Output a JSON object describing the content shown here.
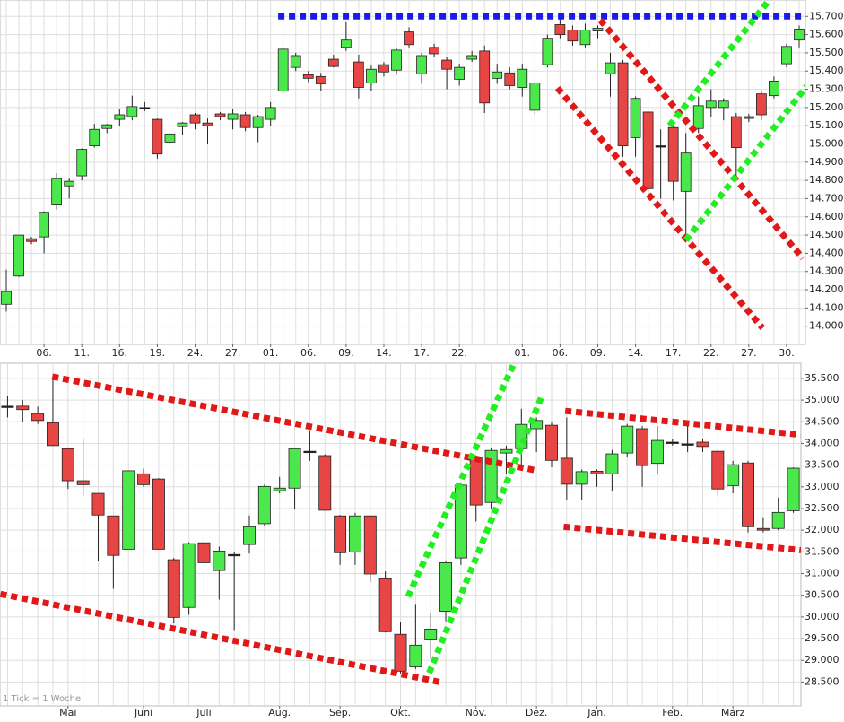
{
  "chart_data": [
    {
      "type": "candlestick",
      "categories": [
        null,
        null,
        null,
        "06.",
        null,
        null,
        "11.",
        null,
        null,
        "16.",
        null,
        null,
        "19.",
        null,
        null,
        "24.",
        null,
        null,
        "27.",
        null,
        null,
        "01.",
        null,
        null,
        "06.",
        null,
        null,
        "09.",
        null,
        null,
        "14.",
        null,
        null,
        "17.",
        null,
        null,
        "22.",
        null,
        null,
        null,
        null,
        "01.",
        null,
        null,
        "06.",
        null,
        null,
        "09.",
        null,
        null,
        "14.",
        null,
        null,
        "17.",
        null,
        null,
        "22.",
        null,
        null,
        "27.",
        null,
        null,
        "30.",
        null
      ],
      "open": [
        14120,
        14275,
        14480,
        14490,
        14665,
        14770,
        14825,
        14990,
        15085,
        15135,
        15150,
        15200,
        15135,
        15010,
        15095,
        15160,
        15115,
        15165,
        15135,
        15160,
        15090,
        15135,
        15290,
        15420,
        15380,
        15370,
        15465,
        15530,
        15450,
        15335,
        15435,
        15405,
        15615,
        15385,
        15530,
        15460,
        15355,
        15465,
        15510,
        15360,
        15390,
        15310,
        15185,
        15435,
        15655,
        15625,
        15545,
        15620,
        15385,
        15445,
        15035,
        15175,
        14990,
        15090,
        14740,
        15085,
        15200,
        15200,
        15150,
        15150,
        15275,
        15265,
        15440,
        15570
      ],
      "high": [
        14310,
        14500,
        14490,
        14630,
        14840,
        14810,
        14975,
        15110,
        15110,
        15190,
        15265,
        15230,
        15140,
        15060,
        15120,
        15170,
        15140,
        15175,
        15190,
        15175,
        15160,
        15230,
        15530,
        15500,
        15400,
        15390,
        15490,
        15670,
        15490,
        15430,
        15450,
        15530,
        15640,
        15500,
        15550,
        15480,
        15440,
        15510,
        15540,
        15440,
        15420,
        15440,
        15340,
        15600,
        15700,
        15650,
        15660,
        15650,
        15500,
        15460,
        15260,
        15180,
        15080,
        15110,
        15060,
        15260,
        15300,
        15250,
        15170,
        15165,
        15290,
        15370,
        15550,
        15650
      ],
      "low": [
        14080,
        14270,
        14450,
        14400,
        14640,
        14700,
        14800,
        14980,
        15060,
        15100,
        15130,
        15180,
        14920,
        15000,
        15050,
        15080,
        15000,
        15130,
        15080,
        15070,
        15010,
        15100,
        15285,
        15400,
        15340,
        15290,
        15420,
        15510,
        15250,
        15290,
        15370,
        15380,
        15530,
        15330,
        15480,
        15300,
        15320,
        15450,
        15170,
        15330,
        15300,
        15260,
        15160,
        15420,
        15580,
        15540,
        15530,
        15580,
        15260,
        14930,
        14930,
        14700,
        14700,
        14690,
        14460,
        15060,
        15150,
        15130,
        14810,
        15120,
        15130,
        15250,
        15420,
        15530
      ],
      "close": [
        14190,
        14500,
        14465,
        14625,
        14810,
        14795,
        14970,
        15080,
        15105,
        15160,
        15205,
        15200,
        14945,
        15055,
        15115,
        15115,
        15100,
        15150,
        15165,
        15090,
        15150,
        15200,
        15520,
        15485,
        15360,
        15330,
        15425,
        15570,
        15310,
        15410,
        15395,
        15515,
        15545,
        15485,
        15495,
        15410,
        15420,
        15485,
        15225,
        15395,
        15320,
        15410,
        15335,
        15580,
        15600,
        15565,
        15625,
        15635,
        15445,
        14990,
        15250,
        14755,
        14990,
        14795,
        14950,
        15210,
        15235,
        15235,
        14980,
        15140,
        15160,
        15345,
        15535,
        15630
      ],
      "up_color": "#4be84b",
      "down_color": "#e84545",
      "grid": true,
      "ylim": [
        13900,
        15790
      ],
      "yticks": [
        {
          "value": 14000,
          "label": "14.000"
        },
        {
          "value": 14100,
          "label": "14.100"
        },
        {
          "value": 14200,
          "label": "14.200"
        },
        {
          "value": 14300,
          "label": "14.300"
        },
        {
          "value": 14400,
          "label": "14.400"
        },
        {
          "value": 14500,
          "label": "14.500"
        },
        {
          "value": 14600,
          "label": "14.600"
        },
        {
          "value": 14700,
          "label": "14.700"
        },
        {
          "value": 14800,
          "label": "14.800"
        },
        {
          "value": 14900,
          "label": "14.900"
        },
        {
          "value": 15000,
          "label": "15.000"
        },
        {
          "value": 15100,
          "label": "15.100"
        },
        {
          "value": 15200,
          "label": "15.200"
        },
        {
          "value": 15300,
          "label": "15.300"
        },
        {
          "value": 15400,
          "label": "15.400"
        },
        {
          "value": 15500,
          "label": "15.500"
        },
        {
          "value": 15600,
          "label": "15.600"
        },
        {
          "value": 15700,
          "label": "15.700"
        }
      ],
      "trendlines": [
        {
          "color": "#1a1aee",
          "x": [
            21.6,
            63.6
          ],
          "y": [
            15700,
            15700
          ]
        },
        {
          "color": "#e01818",
          "x": [
            43.8,
            60.1
          ],
          "y": [
            15307,
            13990
          ]
        },
        {
          "color": "#e01818",
          "x": [
            47.2,
            63.3
          ],
          "y": [
            15680,
            14373
          ]
        },
        {
          "color": "#22ee22",
          "x": [
            52.7,
            60.6
          ],
          "y": [
            15100,
            15788
          ]
        },
        {
          "color": "#22ee22",
          "x": [
            54,
            63.6
          ],
          "y": [
            14472,
            15317
          ]
        }
      ]
    },
    {
      "type": "candlestick",
      "categories": [
        null,
        null,
        null,
        null,
        "Mai",
        null,
        null,
        null,
        null,
        "Juni",
        null,
        null,
        null,
        "Juli",
        null,
        null,
        null,
        null,
        "Aug.",
        null,
        null,
        null,
        "Sep.",
        null,
        null,
        null,
        "Okt.",
        null,
        null,
        null,
        null,
        "Nov.",
        null,
        null,
        null,
        "Dez.",
        null,
        null,
        null,
        "Jan.",
        null,
        null,
        null,
        null,
        "Feb.",
        null,
        null,
        null,
        "März",
        null,
        null,
        null,
        null
      ],
      "open": [
        34860,
        34860,
        34690,
        34480,
        33880,
        33140,
        32850,
        32330,
        31560,
        33300,
        33180,
        31320,
        30220,
        31710,
        31070,
        31440,
        31670,
        32150,
        32910,
        32970,
        33820,
        33720,
        32330,
        31500,
        32330,
        30880,
        29600,
        28850,
        29470,
        30130,
        31360,
        33680,
        32640,
        33780,
        33880,
        34340,
        34420,
        33660,
        33060,
        33360,
        33300,
        33780,
        34340,
        33540,
        34030,
        33990,
        34030,
        33820,
        33030,
        33550,
        32040,
        32040,
        32450
      ],
      "high": [
        35100,
        35000,
        34850,
        35500,
        33900,
        34100,
        32850,
        32330,
        33380,
        33420,
        33200,
        31360,
        31720,
        31900,
        31620,
        31500,
        32340,
        33050,
        33230,
        33900,
        34300,
        33750,
        32350,
        32400,
        32350,
        31050,
        29880,
        30300,
        30100,
        31300,
        33100,
        33700,
        33900,
        33950,
        34800,
        34600,
        34500,
        34600,
        33400,
        33400,
        33850,
        34450,
        34400,
        34400,
        34100,
        34400,
        34100,
        33850,
        33600,
        33600,
        32300,
        32750,
        33450
      ],
      "low": [
        34600,
        34500,
        34450,
        33950,
        32950,
        32800,
        31300,
        30650,
        31560,
        33000,
        31560,
        29850,
        30050,
        30500,
        30400,
        29700,
        31460,
        32100,
        32850,
        32500,
        33600,
        32450,
        31200,
        31200,
        30800,
        29640,
        28700,
        28800,
        29050,
        29900,
        31200,
        32200,
        32500,
        33300,
        33400,
        33800,
        33450,
        32700,
        32700,
        33000,
        32900,
        33700,
        33000,
        33300,
        33950,
        33800,
        33800,
        32800,
        32850,
        31950,
        31950,
        32000,
        32400
      ],
      "close": [
        34860,
        34780,
        34530,
        33950,
        33140,
        33050,
        32350,
        31420,
        33370,
        33050,
        31560,
        29990,
        31690,
        31250,
        31520,
        31440,
        32080,
        33010,
        32970,
        33880,
        33820,
        32460,
        31480,
        32330,
        30990,
        29660,
        28750,
        29350,
        29720,
        31250,
        33040,
        32580,
        33840,
        33860,
        34440,
        34530,
        33610,
        33060,
        33350,
        33300,
        33760,
        34400,
        33490,
        34070,
        34030,
        33990,
        33930,
        32950,
        33510,
        32080,
        32000,
        32410,
        33430
      ],
      "up_color": "#4be84b",
      "down_color": "#e84545",
      "grid": true,
      "ylim": [
        27950,
        35850
      ],
      "yticks": [
        {
          "value": 28500,
          "label": "28.500"
        },
        {
          "value": 29000,
          "label": "29.000"
        },
        {
          "value": 29500,
          "label": "29.500"
        },
        {
          "value": 30000,
          "label": "30.000"
        },
        {
          "value": 30500,
          "label": "30.500"
        },
        {
          "value": 31000,
          "label": "31.000"
        },
        {
          "value": 31500,
          "label": "31.500"
        },
        {
          "value": 32000,
          "label": "32.000"
        },
        {
          "value": 32500,
          "label": "32.500"
        },
        {
          "value": 33000,
          "label": "33.000"
        },
        {
          "value": 33500,
          "label": "33.500"
        },
        {
          "value": 34000,
          "label": "34.000"
        },
        {
          "value": 34500,
          "label": "34.500"
        },
        {
          "value": 35000,
          "label": "35.000"
        },
        {
          "value": 35500,
          "label": "35.500"
        }
      ],
      "annotation": "1 Tick = 1 Woche",
      "trendlines": [
        {
          "color": "#e01818",
          "x": [
            2.96,
            35.1
          ],
          "y": [
            35540,
            33370
          ]
        },
        {
          "color": "#e01818",
          "x": [
            -0.47,
            28.6
          ],
          "y": [
            30530,
            28500
          ]
        },
        {
          "color": "#22ee22",
          "x": [
            26.5,
            33.6
          ],
          "y": [
            30470,
            35910
          ]
        },
        {
          "color": "#22ee22",
          "x": [
            27.9,
            35.4
          ],
          "y": [
            28710,
            35130
          ]
        },
        {
          "color": "#e01818",
          "x": [
            36.9,
            52.5
          ],
          "y": [
            34750,
            34200
          ]
        },
        {
          "color": "#e01818",
          "x": [
            36.8,
            52.5
          ],
          "y": [
            32080,
            31540
          ]
        }
      ]
    }
  ]
}
